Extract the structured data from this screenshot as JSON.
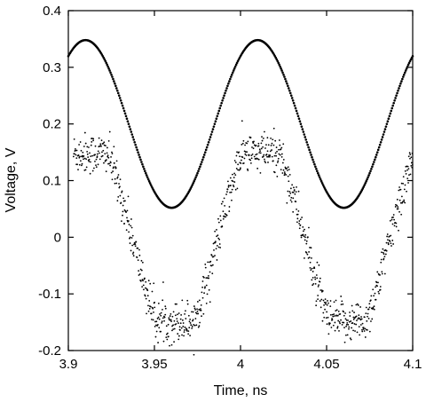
{
  "chart_data": {
    "type": "scatter",
    "title": "",
    "xlabel": "Time, ns",
    "ylabel": "Voltage, V",
    "xlim": [
      3.9,
      4.1
    ],
    "ylim": [
      -0.2,
      0.4
    ],
    "x_ticks": [
      3.9,
      3.95,
      4.0,
      4.05,
      4.1
    ],
    "x_tick_labels": [
      "3.9",
      "3.95",
      "4",
      "4.05",
      "4.1"
    ],
    "y_ticks": [
      -0.2,
      -0.1,
      0,
      0.1,
      0.2,
      0.3,
      0.4
    ],
    "y_tick_labels": [
      "-0.2",
      "-0.1",
      "0",
      "0.1",
      "0.2",
      "0.3",
      "0.4"
    ],
    "grid": false,
    "legend": "none",
    "series": [
      {
        "description_style": "dense dotted sinusoid (clean)",
        "color": "#000000",
        "x_start": 3.9,
        "x_end": 4.1,
        "step": 0.0005,
        "period": 0.1,
        "center": 0.2,
        "amplitude": 0.148,
        "peak_x": 3.91,
        "noise": 0.0
      },
      {
        "description_style": "scattered noisy sinusoid, clipped",
        "color": "#000000",
        "x_start": 3.903,
        "x_end": 4.1,
        "step": 0.0002,
        "period": 0.1,
        "center": 0.0,
        "amplitude": 0.19,
        "peak_x": 4.012,
        "clip_min": -0.148,
        "clip_max": 0.148,
        "noise": 0.018
      }
    ]
  }
}
